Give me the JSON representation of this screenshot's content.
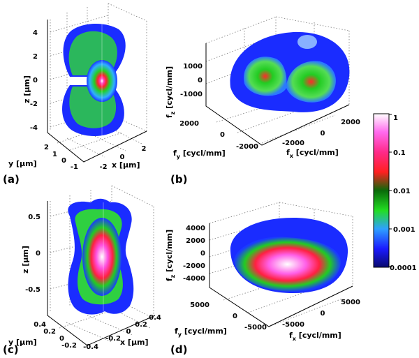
{
  "panels": {
    "a": {
      "label": "(a)",
      "z_label": "z  [µm]",
      "y_label": "y  [µm]",
      "x_label": "x  [µm]",
      "z_ticks": [
        "4",
        "2",
        "0",
        "-2",
        "-4"
      ],
      "y_ticks": [
        "2",
        "1",
        "0",
        "-1"
      ],
      "x_ticks": [
        "-2",
        "0",
        "2"
      ]
    },
    "b": {
      "label": "(b)",
      "z_label_main": "f",
      "z_label_sub": "z",
      "z_label_unit": " [cycl/mm]",
      "y_label_main": "f",
      "y_label_sub": "y",
      "y_label_unit": " [cycl/mm]",
      "x_label_main": "f",
      "x_label_sub": "x",
      "x_label_unit": " [cycl/mm]",
      "z_ticks": [
        "1000",
        "0",
        "-1000"
      ],
      "y_ticks": [
        "2000",
        "0",
        "-2000"
      ],
      "x_ticks": [
        "-2000",
        "0",
        "2000"
      ]
    },
    "c": {
      "label": "(c)",
      "z_label": "z  [µm]",
      "y_label": "y  [µm]",
      "x_label": "x  [µm]",
      "z_ticks": [
        "0.5",
        "0",
        "-0.5"
      ],
      "y_ticks": [
        "0.4",
        "0.2",
        "0",
        "-0.2"
      ],
      "x_ticks": [
        "-0.4",
        "-0.2",
        "0",
        "0.2",
        "0.4"
      ]
    },
    "d": {
      "label": "(d)",
      "z_label_main": "f",
      "z_label_sub": "z",
      "z_label_unit": " [cycl/mm]",
      "y_label_main": "f",
      "y_label_sub": "y",
      "y_label_unit": " [cycl/mm]",
      "x_label_main": "f",
      "x_label_sub": "x",
      "x_label_unit": " [cycl/mm]",
      "z_ticks": [
        "4000",
        "2000",
        "0",
        "-2000",
        "-4000"
      ],
      "y_ticks": [
        "5000",
        "0",
        "-5000"
      ],
      "x_ticks": [
        "-5000",
        "0",
        "5000"
      ]
    }
  },
  "colorbar": {
    "ticks": [
      "1",
      "0.1",
      "0.01",
      "0.001",
      "0.0001"
    ],
    "colors": [
      "#ffffff",
      "#ff44dd",
      "#ff1a4a",
      "#22cc22",
      "#1a2aff",
      "#0a0a78"
    ]
  }
}
